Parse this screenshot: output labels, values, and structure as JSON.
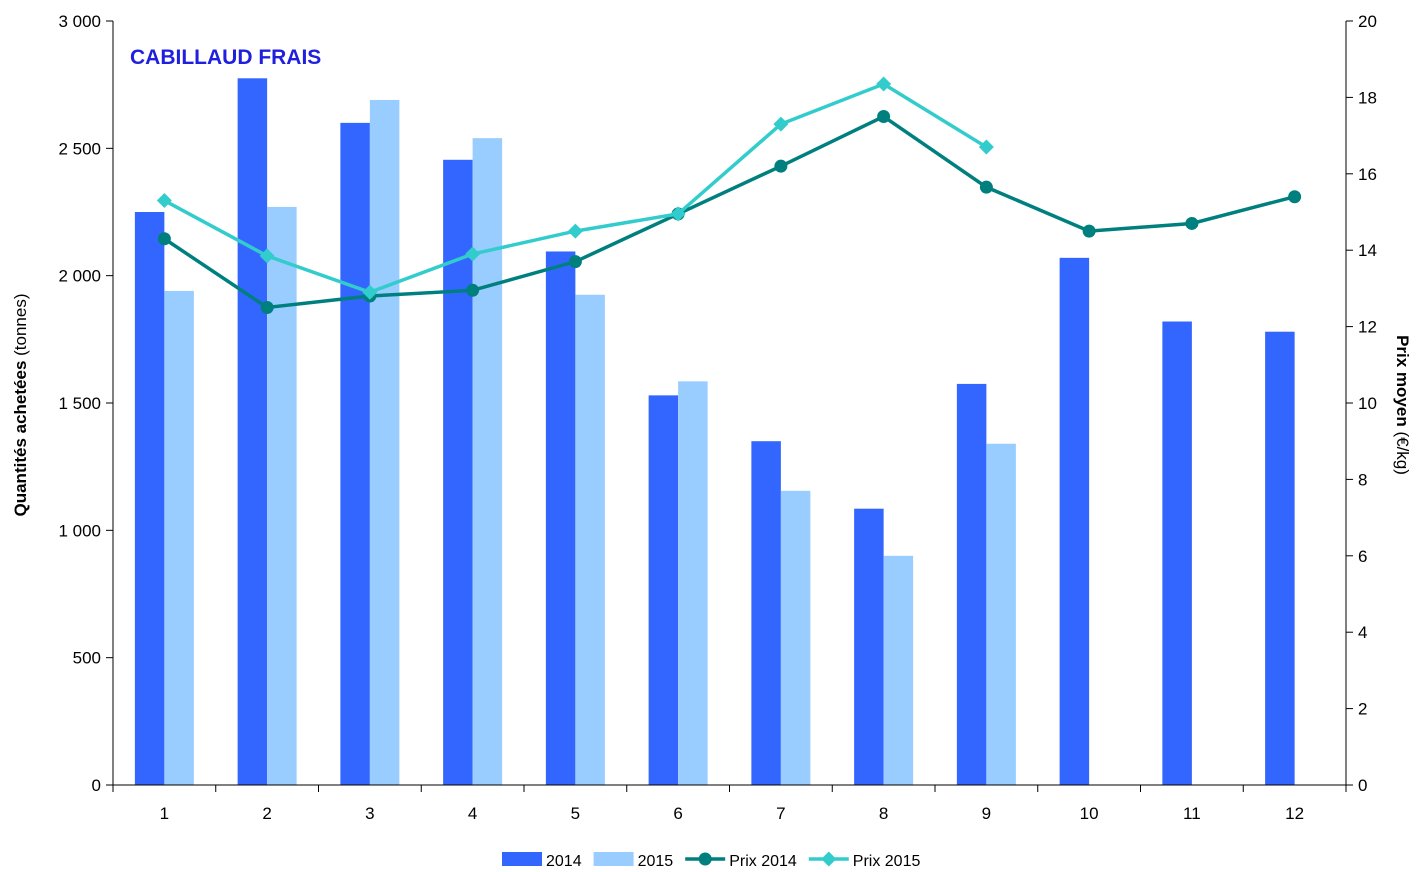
{
  "chart_data": {
    "type": "bar",
    "title": "CABILLAUD FRAIS",
    "categories": [
      "1",
      "2",
      "3",
      "4",
      "5",
      "6",
      "7",
      "8",
      "9",
      "10",
      "11",
      "12"
    ],
    "ylabel_bold": "Quantités achetées",
    "ylabel_rest": " (tonnes)",
    "y2label_bold": "Prix moyen",
    "y2label_rest": " (€/kg)",
    "ylim": [
      0,
      3000
    ],
    "yticks": [
      0,
      500,
      1000,
      1500,
      2000,
      2500,
      3000
    ],
    "ytick_labels": [
      "0",
      "500",
      "1 000",
      "1 500",
      "2 000",
      "2 500",
      "3 000"
    ],
    "y2lim": [
      0,
      20
    ],
    "y2ticks": [
      0,
      2,
      4,
      6,
      8,
      10,
      12,
      14,
      16,
      18,
      20
    ],
    "y2tick_labels": [
      "0",
      "2",
      "4",
      "6",
      "8",
      "10",
      "12",
      "14",
      "16",
      "18",
      "20"
    ],
    "legend_position": "bottom",
    "bar_series": [
      {
        "name": "2014",
        "color": "#3366FF",
        "values": [
          2250,
          2775,
          2600,
          2455,
          2095,
          1530,
          1350,
          1085,
          1575,
          2070,
          1820,
          1780
        ]
      },
      {
        "name": "2015",
        "color": "#99CCFF",
        "values": [
          1940,
          2270,
          2690,
          2540,
          1925,
          1585,
          1155,
          900,
          1340,
          null,
          null,
          null
        ]
      }
    ],
    "line_series": [
      {
        "name": "Prix 2014",
        "color": "#007F7F",
        "marker": "circle",
        "values": [
          14.3,
          12.5,
          12.8,
          12.95,
          13.7,
          14.95,
          16.2,
          17.5,
          15.65,
          14.5,
          14.7,
          15.4
        ]
      },
      {
        "name": "Prix 2015",
        "color": "#33CCCC",
        "marker": "diamond",
        "values": [
          15.3,
          13.85,
          12.9,
          13.9,
          14.5,
          14.95,
          17.3,
          18.35,
          16.7,
          null,
          null,
          null
        ]
      }
    ]
  }
}
